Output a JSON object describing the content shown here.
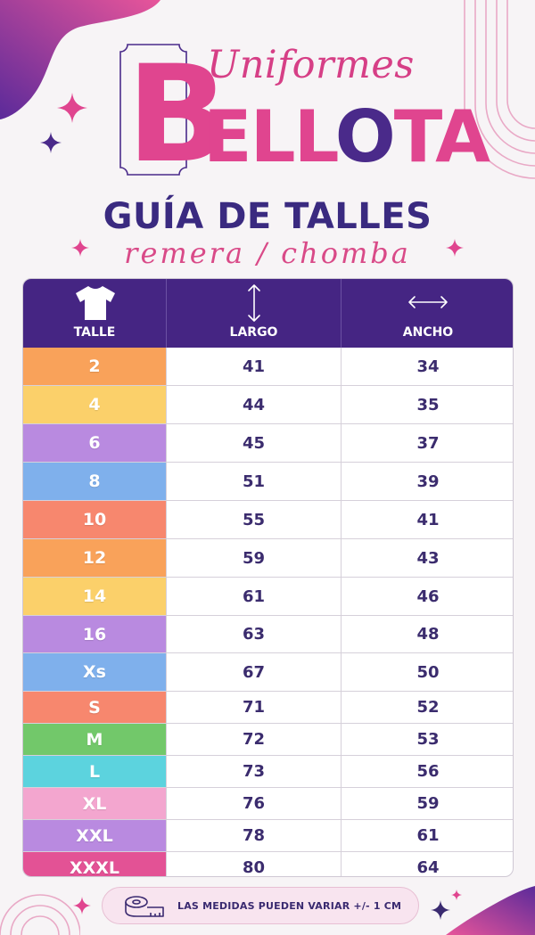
{
  "brand": {
    "initial": "B",
    "script_word": "Uniformes",
    "rest_pink": "ELL",
    "rest_dark": "O",
    "rest_pink2": "TA"
  },
  "title": "GUÍA DE TALLES",
  "subtitle": "remera / chomba",
  "colors": {
    "header_bg": "#452583",
    "accent_pink": "#e0458f",
    "dark_purple": "#4a2a8a"
  },
  "table": {
    "headers": [
      {
        "label": "TALLE",
        "icon": "tshirt-icon"
      },
      {
        "label": "LARGO",
        "icon": "vertical-arrow-icon"
      },
      {
        "label": "ANCHO",
        "icon": "horizontal-arrow-icon"
      }
    ],
    "rows": [
      {
        "talle": "2",
        "largo": "41",
        "ancho": "34",
        "color": "#f9a25a"
      },
      {
        "talle": "4",
        "largo": "44",
        "ancho": "35",
        "color": "#fbd06a"
      },
      {
        "talle": "6",
        "largo": "45",
        "ancho": "37",
        "color": "#b98ae0"
      },
      {
        "talle": "8",
        "largo": "51",
        "ancho": "39",
        "color": "#7fb0ec"
      },
      {
        "talle": "10",
        "largo": "55",
        "ancho": "41",
        "color": "#f7876e"
      },
      {
        "talle": "12",
        "largo": "59",
        "ancho": "43",
        "color": "#f9a25a"
      },
      {
        "talle": "14",
        "largo": "61",
        "ancho": "46",
        "color": "#fbd06a"
      },
      {
        "talle": "16",
        "largo": "63",
        "ancho": "48",
        "color": "#b98ae0"
      },
      {
        "talle": "Xs",
        "largo": "67",
        "ancho": "50",
        "color": "#7fb0ec"
      },
      {
        "talle": "S",
        "largo": "71",
        "ancho": "52",
        "color": "#f7876e"
      },
      {
        "talle": "M",
        "largo": "72",
        "ancho": "53",
        "color": "#72c86a"
      },
      {
        "talle": "L",
        "largo": "73",
        "ancho": "56",
        "color": "#5cd3de"
      },
      {
        "talle": "XL",
        "largo": "76",
        "ancho": "59",
        "color": "#f3a6cf"
      },
      {
        "talle": "XXL",
        "largo": "78",
        "ancho": "61",
        "color": "#b98ae0"
      },
      {
        "talle": "XXXL",
        "largo": "80",
        "ancho": "64",
        "color": "#e35295"
      }
    ]
  },
  "note": {
    "icon": "measuring-tape-icon",
    "text": "LAS MEDIDAS PUEDEN VARIAR +/- 1 CM"
  }
}
